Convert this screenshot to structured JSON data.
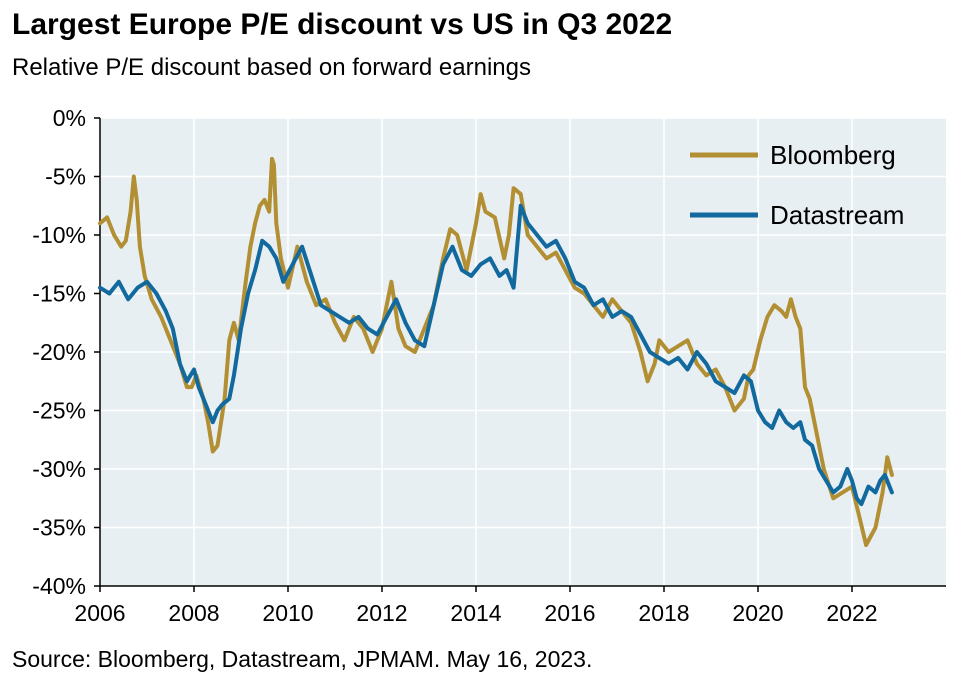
{
  "header": {
    "title": "Largest Europe P/E discount vs US in Q3 2022",
    "subtitle": "Relative P/E discount based on forward earnings"
  },
  "footer": {
    "source": "Source: Bloomberg, Datastream, JPMAM. May 16, 2023."
  },
  "colors": {
    "plot_background": "#e8eff3",
    "gridline": "#ffffff",
    "axis": "#000000",
    "bloomberg": "#b38f33",
    "datastream": "#11699e"
  },
  "chart_data": {
    "type": "line",
    "title": "Largest Europe P/E discount vs US in Q3 2022",
    "subtitle": "Relative P/E discount based on forward earnings",
    "xlabel": "",
    "ylabel": "",
    "xlim": [
      2006,
      2024
    ],
    "ylim": [
      -40,
      0
    ],
    "x_ticks": [
      2006,
      2008,
      2010,
      2012,
      2014,
      2016,
      2018,
      2020,
      2022
    ],
    "x_tick_labels": [
      "2006",
      "2008",
      "2010",
      "2012",
      "2014",
      "2016",
      "2018",
      "2020",
      "2022"
    ],
    "y_ticks": [
      0,
      -5,
      -10,
      -15,
      -20,
      -25,
      -30,
      -35,
      -40
    ],
    "y_tick_labels": [
      "0%",
      "-5%",
      "-10%",
      "-15%",
      "-20%",
      "-25%",
      "-30%",
      "-35%",
      "-40%"
    ],
    "grid": true,
    "legend_position": "top-right",
    "series": [
      {
        "name": "Bloomberg",
        "color": "#b38f33",
        "x": [
          2006.0,
          2006.15,
          2006.3,
          2006.45,
          2006.55,
          2006.65,
          2006.72,
          2006.78,
          2006.85,
          2006.95,
          2007.1,
          2007.3,
          2007.5,
          2007.7,
          2007.85,
          2007.95,
          2008.05,
          2008.2,
          2008.3,
          2008.4,
          2008.5,
          2008.65,
          2008.75,
          2008.85,
          2008.95,
          2009.1,
          2009.2,
          2009.3,
          2009.4,
          2009.5,
          2009.6,
          2009.66,
          2009.7,
          2009.75,
          2009.85,
          2010.0,
          2010.2,
          2010.4,
          2010.6,
          2010.8,
          2011.0,
          2011.2,
          2011.4,
          2011.6,
          2011.8,
          2012.0,
          2012.1,
          2012.2,
          2012.35,
          2012.5,
          2012.7,
          2012.9,
          2013.1,
          2013.3,
          2013.45,
          2013.6,
          2013.8,
          2014.0,
          2014.1,
          2014.2,
          2014.4,
          2014.6,
          2014.7,
          2014.8,
          2014.95,
          2015.1,
          2015.3,
          2015.5,
          2015.7,
          2015.9,
          2016.1,
          2016.3,
          2016.5,
          2016.7,
          2016.9,
          2017.1,
          2017.3,
          2017.5,
          2017.65,
          2017.8,
          2017.9,
          2018.1,
          2018.3,
          2018.5,
          2018.7,
          2018.9,
          2019.1,
          2019.3,
          2019.5,
          2019.7,
          2019.8,
          2019.9,
          2020.05,
          2020.2,
          2020.35,
          2020.5,
          2020.6,
          2020.7,
          2020.8,
          2020.9,
          2021.0,
          2021.1,
          2021.2,
          2021.3,
          2021.4,
          2021.6,
          2021.8,
          2022.0,
          2022.15,
          2022.3,
          2022.5,
          2022.65,
          2022.75,
          2022.85
        ],
        "values": [
          -9.0,
          -8.5,
          -10.0,
          -11.0,
          -10.5,
          -8.0,
          -5.0,
          -7.0,
          -11.0,
          -13.5,
          -15.5,
          -17.0,
          -19.0,
          -21.0,
          -23.0,
          -23.0,
          -22.0,
          -24.0,
          -26.0,
          -28.5,
          -28.0,
          -24.0,
          -19.0,
          -17.5,
          -19.0,
          -14.0,
          -11.0,
          -9.0,
          -7.5,
          -7.0,
          -8.0,
          -3.5,
          -4.0,
          -9.0,
          -12.0,
          -14.5,
          -11.0,
          -14.0,
          -16.0,
          -15.5,
          -17.5,
          -19.0,
          -17.0,
          -18.0,
          -20.0,
          -18.0,
          -16.0,
          -14.0,
          -18.0,
          -19.5,
          -20.0,
          -18.0,
          -16.0,
          -12.0,
          -9.5,
          -10.0,
          -13.0,
          -9.0,
          -6.5,
          -8.0,
          -8.5,
          -12.0,
          -10.0,
          -6.0,
          -6.5,
          -10.0,
          -11.0,
          -12.0,
          -11.5,
          -13.0,
          -14.5,
          -15.0,
          -16.0,
          -17.0,
          -15.5,
          -16.5,
          -17.5,
          -20.0,
          -22.5,
          -21.0,
          -19.0,
          -20.0,
          -19.5,
          -19.0,
          -21.0,
          -22.0,
          -21.5,
          -23.0,
          -25.0,
          -24.0,
          -22.0,
          -21.5,
          -19.0,
          -17.0,
          -16.0,
          -16.5,
          -17.0,
          -15.5,
          -17.0,
          -18.0,
          -23.0,
          -24.0,
          -26.0,
          -28.0,
          -30.0,
          -32.5,
          -32.0,
          -31.5,
          -34.0,
          -36.5,
          -35.0,
          -32.0,
          -29.0,
          -30.5
        ]
      },
      {
        "name": "Datastream",
        "color": "#11699e",
        "x": [
          2006.0,
          2006.2,
          2006.4,
          2006.6,
          2006.8,
          2007.0,
          2007.2,
          2007.4,
          2007.55,
          2007.7,
          2007.85,
          2008.0,
          2008.1,
          2008.25,
          2008.4,
          2008.5,
          2008.6,
          2008.75,
          2008.85,
          2009.0,
          2009.15,
          2009.3,
          2009.45,
          2009.6,
          2009.75,
          2009.9,
          2010.1,
          2010.3,
          2010.5,
          2010.7,
          2010.9,
          2011.1,
          2011.3,
          2011.5,
          2011.7,
          2011.9,
          2012.1,
          2012.3,
          2012.5,
          2012.7,
          2012.9,
          2013.1,
          2013.3,
          2013.5,
          2013.7,
          2013.9,
          2014.1,
          2014.3,
          2014.5,
          2014.65,
          2014.8,
          2014.95,
          2015.1,
          2015.3,
          2015.5,
          2015.7,
          2015.9,
          2016.1,
          2016.3,
          2016.5,
          2016.7,
          2016.9,
          2017.1,
          2017.3,
          2017.5,
          2017.7,
          2017.9,
          2018.1,
          2018.3,
          2018.5,
          2018.7,
          2018.9,
          2019.1,
          2019.3,
          2019.5,
          2019.7,
          2019.85,
          2020.0,
          2020.15,
          2020.3,
          2020.45,
          2020.6,
          2020.75,
          2020.9,
          2021.0,
          2021.15,
          2021.3,
          2021.45,
          2021.6,
          2021.75,
          2021.9,
          2022.0,
          2022.1,
          2022.2,
          2022.35,
          2022.5,
          2022.6,
          2022.7,
          2022.85
        ],
        "values": [
          -14.5,
          -15.0,
          -14.0,
          -15.5,
          -14.5,
          -14.0,
          -15.0,
          -16.5,
          -18.0,
          -21.0,
          -22.5,
          -21.5,
          -23.0,
          -24.5,
          -26.0,
          -25.0,
          -24.5,
          -24.0,
          -22.0,
          -18.0,
          -15.0,
          -13.0,
          -10.5,
          -11.0,
          -12.0,
          -14.0,
          -12.5,
          -11.0,
          -13.5,
          -16.0,
          -16.5,
          -17.0,
          -17.5,
          -17.0,
          -18.0,
          -18.5,
          -17.0,
          -15.5,
          -17.5,
          -19.0,
          -19.5,
          -16.0,
          -12.5,
          -11.0,
          -13.0,
          -13.5,
          -12.5,
          -12.0,
          -13.5,
          -13.0,
          -14.5,
          -7.5,
          -9.0,
          -10.0,
          -11.0,
          -10.5,
          -12.0,
          -14.0,
          -14.5,
          -16.0,
          -15.5,
          -17.0,
          -16.5,
          -17.0,
          -18.5,
          -20.0,
          -20.5,
          -21.0,
          -20.5,
          -21.5,
          -20.0,
          -21.0,
          -22.5,
          -23.0,
          -23.5,
          -22.0,
          -22.5,
          -25.0,
          -26.0,
          -26.5,
          -25.0,
          -26.0,
          -26.5,
          -26.0,
          -27.5,
          -28.0,
          -30.0,
          -31.0,
          -32.0,
          -31.5,
          -30.0,
          -31.0,
          -32.5,
          -33.0,
          -31.5,
          -32.0,
          -31.0,
          -30.5,
          -32.0
        ]
      }
    ]
  }
}
